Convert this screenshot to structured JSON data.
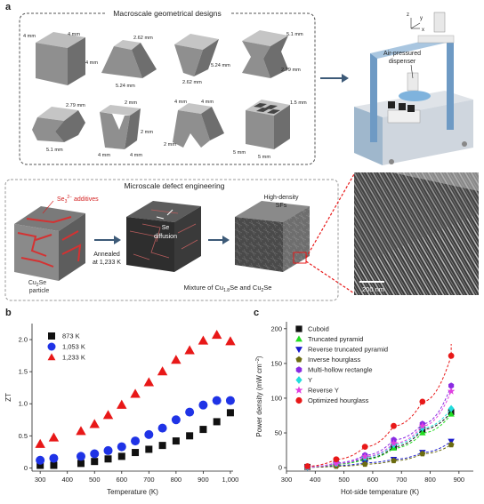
{
  "panel_a": {
    "letter": "a",
    "macro_title": "Macroscale geometrical designs",
    "micro_title": "Microscale defect engineering",
    "dispenser_label": "Air-pressured\ndispenser",
    "axis_labels": [
      "z",
      "y",
      "x"
    ],
    "shape_dims": {
      "cube": [
        "4 mm",
        "4 mm",
        "4 mm"
      ],
      "truncated": [
        "2.62 mm",
        "5.24 mm"
      ],
      "reverse_truncated": [
        "5.24 mm",
        "2.62 mm"
      ],
      "hourglass": [
        "5.1 mm",
        "2.79 mm"
      ],
      "inverse_hourglass": [
        "2.79 mm",
        "5.1 mm"
      ],
      "y_shape": [
        "2 mm",
        "2 mm",
        "4 mm",
        "4 mm"
      ],
      "reverse_y": [
        "4 mm",
        "4 mm",
        "2 mm"
      ],
      "hollow": [
        "1.5 mm",
        "5 mm",
        "5 mm"
      ]
    },
    "se_additives": "Se",
    "se_sup": "2−",
    "se_sub": "3",
    "se_additives_tail": " additives",
    "particle_label_1": "Cu",
    "particle_label_sub": "2",
    "particle_label_2": "Se",
    "particle_label_3": "particle",
    "annealed_1": "Annealed",
    "annealed_2": "at 1,233 K",
    "se_diffusion_1": "Se",
    "se_diffusion_2": "diffusion",
    "high_density": "High-density",
    "sfs": "SFs",
    "mixture_pre": "Mixture of Cu",
    "mixture_sub": "1.8",
    "mixture_mid": "Se and Cu",
    "mixture_sub2": "2",
    "mixture_post": "Se",
    "scale_bar": "200 nm"
  },
  "panel_b": {
    "letter": "b",
    "chart_data": {
      "type": "scatter",
      "xlabel": "Temperature (K)",
      "ylabel": "ZT",
      "xlim": [
        270,
        1010
      ],
      "ylim": [
        -0.05,
        2.25
      ],
      "xticks": [
        300,
        400,
        500,
        600,
        700,
        800,
        900,
        "1,000"
      ],
      "xtick_values": [
        300,
        400,
        500,
        600,
        700,
        800,
        900,
        1000
      ],
      "yticks": [
        "0",
        "0.5",
        "1.0",
        "1.5",
        "2.0"
      ],
      "ytick_values": [
        0,
        0.5,
        1.0,
        1.5,
        2.0
      ],
      "series": [
        {
          "name": "873 K",
          "marker": "square",
          "color": "#111111",
          "x": [
            300,
            350,
            450,
            500,
            550,
            600,
            650,
            700,
            750,
            800,
            850,
            900,
            950,
            1000
          ],
          "y": [
            0.04,
            0.04,
            0.07,
            0.1,
            0.14,
            0.18,
            0.24,
            0.29,
            0.35,
            0.42,
            0.5,
            0.6,
            0.72,
            0.86
          ]
        },
        {
          "name": "1,053 K",
          "marker": "circle",
          "color": "#1f33e6",
          "x": [
            300,
            350,
            450,
            500,
            550,
            600,
            650,
            700,
            750,
            800,
            850,
            900,
            950,
            1000
          ],
          "y": [
            0.12,
            0.15,
            0.18,
            0.22,
            0.27,
            0.33,
            0.42,
            0.52,
            0.62,
            0.75,
            0.87,
            0.98,
            1.05,
            1.05
          ]
        },
        {
          "name": "1,233 K",
          "marker": "triangle",
          "color": "#e81818",
          "x": [
            300,
            350,
            450,
            500,
            550,
            600,
            650,
            700,
            750,
            800,
            850,
            900,
            950,
            1000
          ],
          "y": [
            0.37,
            0.47,
            0.57,
            0.68,
            0.82,
            0.98,
            1.15,
            1.33,
            1.5,
            1.68,
            1.83,
            1.98,
            2.07,
            1.97
          ]
        }
      ]
    }
  },
  "panel_c": {
    "letter": "c",
    "chart_data": {
      "type": "scatter",
      "xlabel": "Hot-side temperature (K)",
      "ylabel": "Power density (mW cm",
      "ylabel_sup": "−2",
      "ylabel_tail": ")",
      "xlim": [
        300,
        950
      ],
      "ylim": [
        -5,
        210
      ],
      "xticks": [
        300,
        400,
        500,
        600,
        700,
        800,
        900
      ],
      "yticks": [
        0,
        50,
        100,
        150,
        200
      ],
      "x": [
        373,
        473,
        573,
        673,
        773,
        873
      ],
      "series": [
        {
          "name": "Cuboid",
          "marker": "square",
          "color": "#111111",
          "y": [
            1,
            5,
            13,
            30,
            55,
            80
          ]
        },
        {
          "name": "Truncated pyramid",
          "marker": "triangle",
          "color": "#22dd22",
          "y": [
            1,
            5,
            12,
            28,
            50,
            77
          ]
        },
        {
          "name": "Reverse truncated pyramid",
          "marker": "triangle-down",
          "color": "#1a1acc",
          "y": [
            0.5,
            3,
            7,
            12,
            22,
            38
          ]
        },
        {
          "name": "Inverse hourglass",
          "marker": "pentagon",
          "color": "#6b6b10",
          "y": [
            0.5,
            2,
            5,
            10,
            20,
            33
          ]
        },
        {
          "name": "Multi-hollow rectangle",
          "marker": "hexagon",
          "color": "#8a2be2",
          "y": [
            1,
            7,
            18,
            40,
            63,
            118
          ]
        },
        {
          "name": "Y",
          "marker": "diamond",
          "color": "#22dddd",
          "y": [
            1,
            6,
            15,
            33,
            57,
            85
          ]
        },
        {
          "name": "Reverse Y",
          "marker": "star",
          "color": "#e040e0",
          "y": [
            1,
            6,
            16,
            35,
            60,
            110
          ]
        },
        {
          "name": "Optimized hourglass",
          "marker": "circle",
          "color": "#e81818",
          "y": [
            2,
            12,
            30,
            60,
            95,
            161
          ]
        }
      ]
    }
  }
}
